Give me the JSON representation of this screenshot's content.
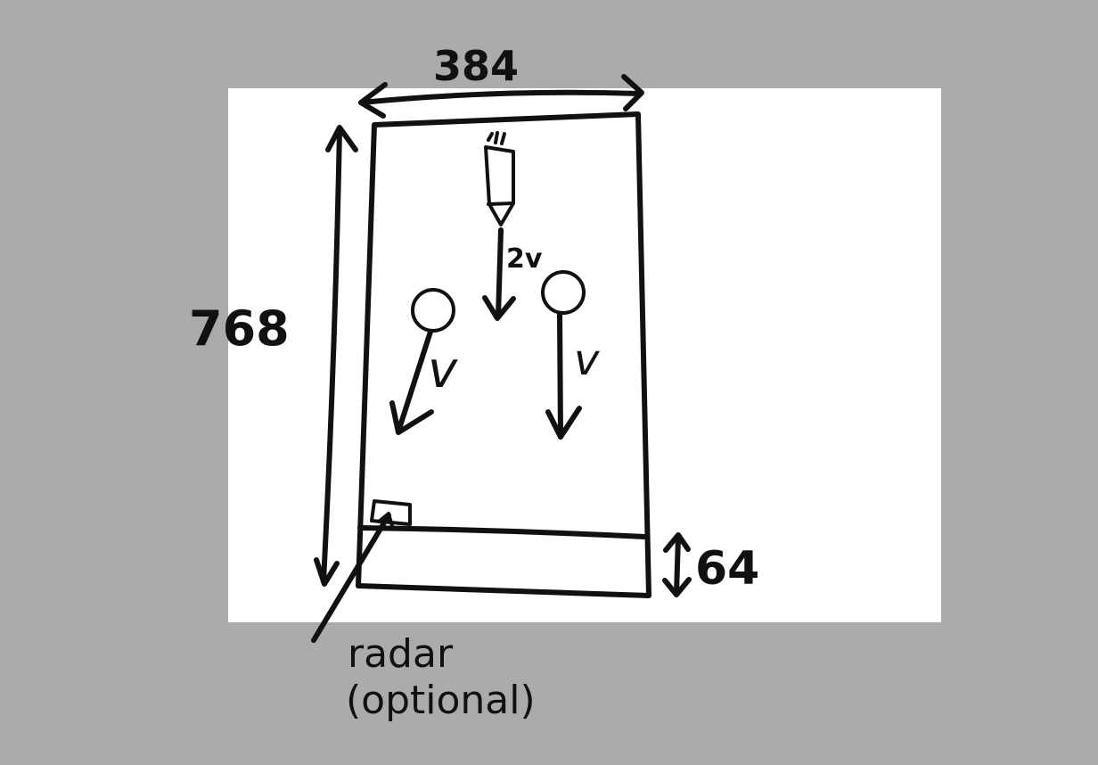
{
  "background_color": "#ababab",
  "canvas_color": "#ffffff",
  "ink_color": "#111111",
  "labels": {
    "width": "384",
    "height": "768",
    "bar_height": "64",
    "speed_player": "2v",
    "speed_enemy_left": "v",
    "speed_enemy_right": "v",
    "radar_line1": "radar",
    "radar_line2": "(optional)"
  },
  "icons": {
    "player": "rocket-icon",
    "enemy": "ball-icon"
  }
}
